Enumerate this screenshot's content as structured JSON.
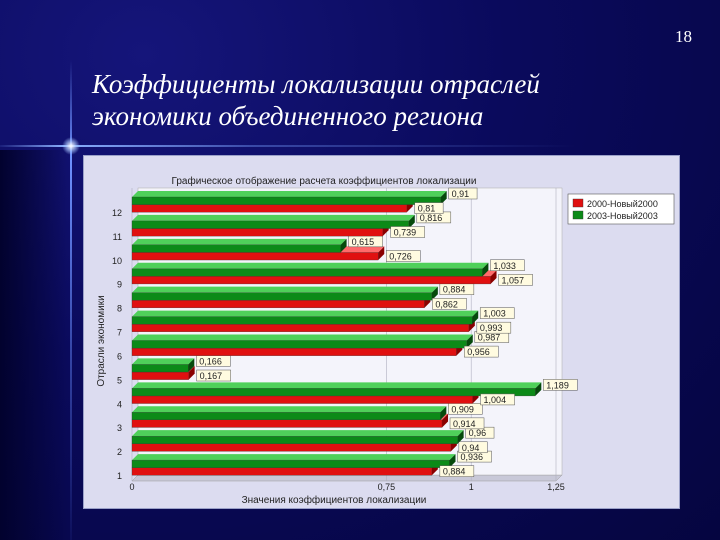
{
  "slide": {
    "number": "18",
    "title": "Коэффициенты локализации отраслей экономики объединенного региона"
  },
  "chart_data": {
    "type": "bar",
    "orientation": "horizontal",
    "title": "Графическое отображение расчета коэффициентов локализации",
    "xlabel": "Значения коэффициентов локализации",
    "ylabel": "Отрасли экономики",
    "xlim": [
      0,
      1.25
    ],
    "x_ticks": [
      "0",
      "0,75",
      "1",
      "1,25"
    ],
    "x_tick_values": [
      0,
      0.75,
      1,
      1.25
    ],
    "categories": [
      "1",
      "2",
      "3",
      "4",
      "5",
      "6",
      "7",
      "8",
      "9",
      "10",
      "11",
      "12"
    ],
    "series": [
      {
        "name": "2000-Новый2000",
        "color": "#e01010",
        "values": [
          0.884,
          0.94,
          0.914,
          1.004,
          0.167,
          0.956,
          0.993,
          0.862,
          1.057,
          0.726,
          0.739,
          0.81
        ]
      },
      {
        "name": "2003-Новый2003",
        "color": "#0c8a18",
        "values": [
          0.936,
          0.96,
          0.909,
          1.189,
          0.166,
          0.987,
          1.003,
          0.884,
          1.033,
          0.615,
          0.816,
          0.91
        ]
      }
    ],
    "data_labels": [
      {
        "cat": "1",
        "series": "2000-Новый2000",
        "text": "0,884"
      },
      {
        "cat": "1",
        "series": "2003-Новый2003",
        "text": "0,936"
      },
      {
        "cat": "2",
        "series": "2000-Новый2000",
        "text": "0,94"
      },
      {
        "cat": "2",
        "series": "2003-Новый2003",
        "text": "0,96"
      },
      {
        "cat": "3",
        "series": "2000-Новый2000",
        "text": "0,914"
      },
      {
        "cat": "3",
        "series": "2003-Новый2003",
        "text": "0,909"
      },
      {
        "cat": "4",
        "series": "2000-Новый2000",
        "text": "1,004"
      },
      {
        "cat": "4",
        "series": "2003-Новый2003",
        "text": "1,189"
      },
      {
        "cat": "5",
        "series": "2000-Новый2000",
        "text": "0,167"
      },
      {
        "cat": "5",
        "series": "2003-Новый2003",
        "text": "0,166"
      },
      {
        "cat": "6",
        "series": "2000-Новый2000",
        "text": "0,956"
      },
      {
        "cat": "6",
        "series": "2003-Новый2003",
        "text": "0,987"
      },
      {
        "cat": "7",
        "series": "2000-Новый2000",
        "text": "0,993"
      },
      {
        "cat": "7",
        "series": "2003-Новый2003",
        "text": "1,003"
      },
      {
        "cat": "8",
        "series": "2000-Новый2000",
        "text": "0,862"
      },
      {
        "cat": "8",
        "series": "2003-Новый2003",
        "text": "0,884"
      },
      {
        "cat": "9",
        "series": "2000-Новый2000",
        "text": "1,057"
      },
      {
        "cat": "9",
        "series": "2003-Новый2003",
        "text": "1,033"
      },
      {
        "cat": "10",
        "series": "2000-Новый2000",
        "text": "0,726"
      },
      {
        "cat": "10",
        "series": "2003-Новый2003",
        "text": "0,615"
      },
      {
        "cat": "11",
        "series": "2000-Новый2000",
        "text": "0,739"
      },
      {
        "cat": "11",
        "series": "2003-Новый2003",
        "text": "0,816"
      },
      {
        "cat": "12",
        "series": "2000-Новый2000",
        "text": "0,81"
      },
      {
        "cat": "12",
        "series": "2003-Новый2003",
        "text": "0,91"
      }
    ],
    "legend_position": "top-right",
    "grid": false
  }
}
